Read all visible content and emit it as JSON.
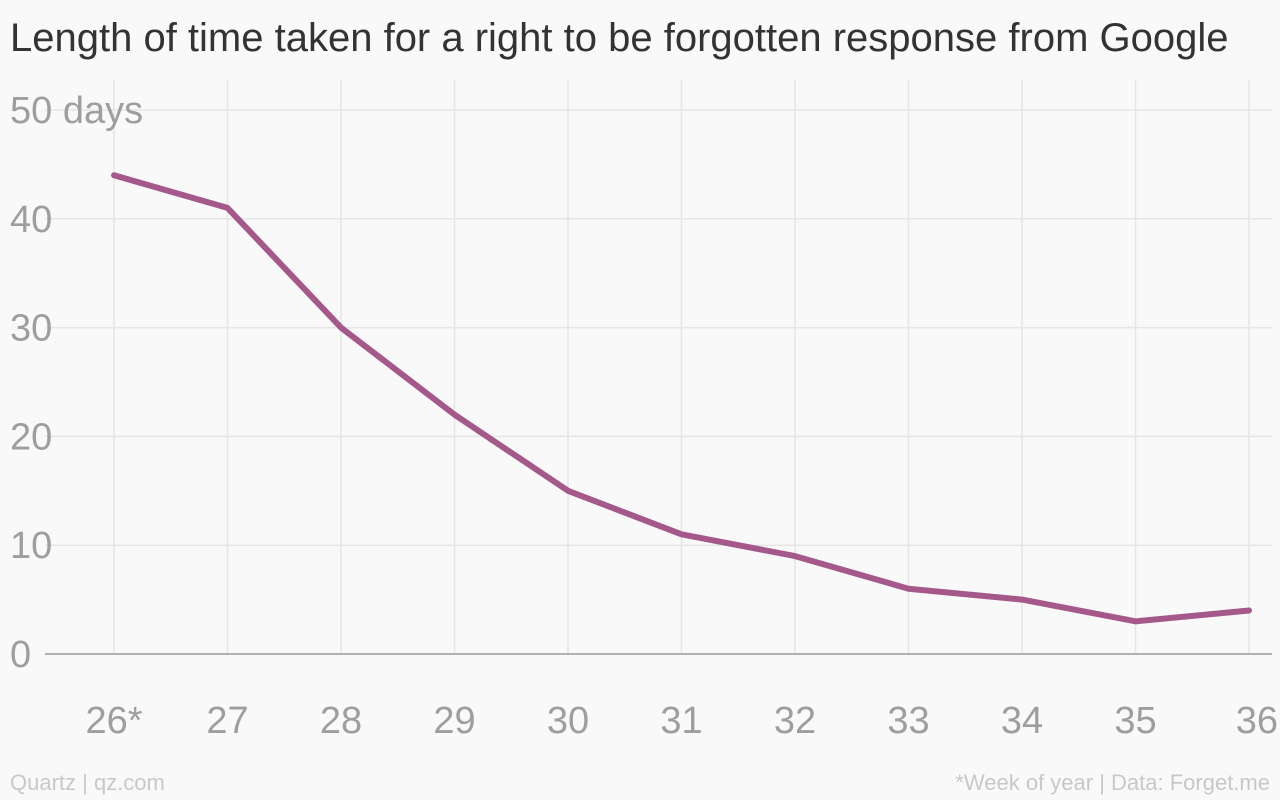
{
  "chart_data": {
    "type": "line",
    "title": "Length of time taken for a right to be forgotten response from Google",
    "xlabel": "",
    "ylabel": "",
    "categories": [
      "26*",
      "27",
      "28",
      "29",
      "30",
      "31",
      "32",
      "33",
      "34",
      "35",
      "36"
    ],
    "series": [
      {
        "values": [
          44,
          41,
          30,
          22,
          15,
          11,
          9,
          6,
          5,
          3,
          4
        ],
        "color": "#a5598a"
      }
    ],
    "ylim": [
      0,
      50
    ],
    "y_ticks": [
      0,
      10,
      20,
      30,
      40,
      50
    ],
    "y_tick_labels": [
      "0",
      "10",
      "20",
      "30",
      "40",
      "50 days"
    ],
    "grid": true
  },
  "footer": {
    "source_left": "Quartz | qz.com",
    "source_right": "*Week of year | Data: Forget.me"
  }
}
